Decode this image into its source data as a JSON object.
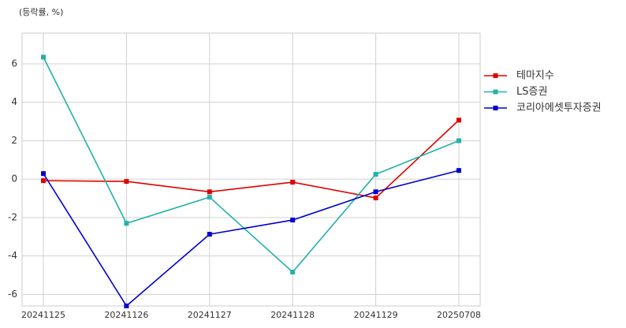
{
  "chart_data": {
    "type": "line",
    "title": "(등락률, %)",
    "categories": [
      "20241125",
      "20241126",
      "20241127",
      "20241128",
      "20241129",
      "20250708"
    ],
    "series": [
      {
        "name": "테마지수",
        "color": "#e00000",
        "values": [
          -0.08,
          -0.12,
          -0.66,
          -0.16,
          -0.98,
          3.07
        ]
      },
      {
        "name": "LS증권",
        "color": "#20b2aa",
        "values": [
          6.35,
          -2.3,
          -0.94,
          -4.84,
          0.25,
          2.0
        ]
      },
      {
        "name": "코리아에셋투자증권",
        "color": "#0000d0",
        "values": [
          0.29,
          -6.6,
          -2.87,
          -2.13,
          -0.66,
          0.45
        ]
      }
    ],
    "ylim": [
      -6.6,
      7.6
    ],
    "yticks": [
      -6,
      -4,
      -2,
      0,
      2,
      4,
      6
    ],
    "grid": true,
    "legend": "right"
  }
}
